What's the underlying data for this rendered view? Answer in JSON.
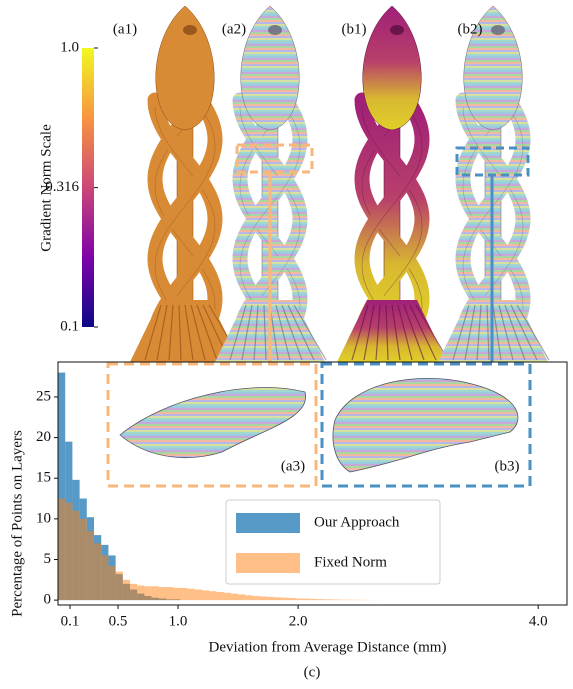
{
  "panel_labels": {
    "a1": "(a1)",
    "a2": "(a2)",
    "b1": "(b1)",
    "b2": "(b2)",
    "a3": "(a3)",
    "b3": "(b3)",
    "c": "(c)"
  },
  "colorbar": {
    "title": "Gradient Norm Scale",
    "scale": "log",
    "lim": [
      0.1,
      1
    ],
    "ticks": [
      {
        "value": 1,
        "label": "1.0"
      },
      0.316,
      0.1
    ]
  },
  "chart_data": {
    "type": "histogram",
    "xlabel": "Deviation from Average Distance (mm)",
    "ylabel": "Percentage of Points on Layers",
    "bins": [
      0,
      0.06,
      0.12,
      0.18,
      0.24,
      0.3,
      0.36,
      0.42,
      0.48,
      0.54,
      0.6,
      0.66,
      0.72,
      0.78,
      0.84,
      0.9,
      0.96,
      1.02,
      1.08,
      1.14,
      1.2,
      1.26,
      1.32,
      1.38,
      1.44,
      1.5,
      1.56,
      1.62,
      1.68,
      1.74,
      1.8,
      1.86,
      1.92,
      1.98,
      2.04,
      2.1,
      2.16,
      2.22,
      2.28,
      2.34,
      2.4,
      2.46,
      2.52,
      2.58,
      2.64,
      2.7
    ],
    "series": [
      {
        "name": "Our Approach",
        "color": "#1f77b4",
        "values": [
          28,
          19.5,
          14.8,
          12.5,
          10.2,
          8,
          6.8,
          5.5,
          3.2,
          2,
          1.3,
          0.8,
          0.5,
          0.3,
          0.2,
          0.1,
          0.1,
          0,
          0,
          0,
          0,
          0,
          0,
          0,
          0,
          0,
          0,
          0,
          0,
          0,
          0,
          0,
          0,
          0,
          0,
          0,
          0,
          0,
          0,
          0,
          0,
          0,
          0,
          0,
          0
        ]
      },
      {
        "name": "Fixed Norm",
        "color": "#ff7f0e",
        "values": [
          12.5,
          12,
          11,
          10,
          8.5,
          7,
          5.5,
          4.2,
          3.5,
          2.5,
          2,
          1.8,
          1.7,
          1.7,
          1.6,
          1.6,
          1.5,
          1.5,
          1.4,
          1.3,
          1.2,
          1.1,
          1,
          0.9,
          0.8,
          0.7,
          0.6,
          0.5,
          0.45,
          0.4,
          0.35,
          0.3,
          0.25,
          0.2,
          0.18,
          0.15,
          0.12,
          0.1,
          0.08,
          0.06,
          0.05,
          0.04,
          0.03,
          0.02,
          0.01
        ]
      }
    ],
    "xlim": [
      0,
      4.24
    ],
    "ylim": [
      -0.6,
      29.3
    ],
    "xticks": [
      0.1,
      0.5,
      {
        "value": 1,
        "label": "1.0"
      },
      {
        "value": 2,
        "label": "2.0"
      },
      {
        "value": 4,
        "label": "4.0"
      }
    ],
    "yticks": [
      0,
      5,
      10,
      15,
      20,
      25
    ],
    "legend": "lower center"
  }
}
